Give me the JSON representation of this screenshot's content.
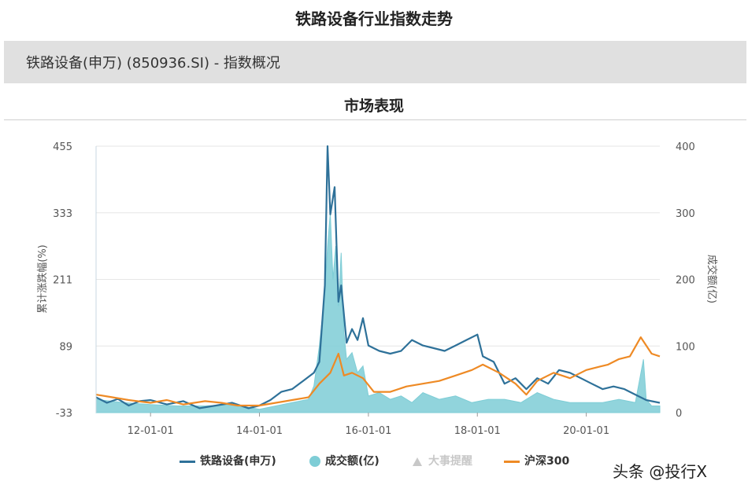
{
  "page": {
    "title": "铁路设备行业指数走势",
    "info_bar": "铁路设备(申万) (850936.SI) - 指数概况",
    "section_title": "市场表现",
    "watermark": "头条 @投行X"
  },
  "colors": {
    "index_line": "#2e7199",
    "volume_fill": "#7ecdd6",
    "hs300_line": "#ee8a25",
    "grid": "#e6e6e6"
  },
  "chart_data": {
    "type": "line",
    "title": "",
    "ylabel_left": "累计涨跌幅(%)",
    "ylabel_right": "成交额(亿)",
    "yticks_left": [
      -33,
      89,
      211,
      333,
      455
    ],
    "ylim_left": [
      -33,
      455
    ],
    "yticks_right": [
      0,
      100,
      200,
      300,
      400
    ],
    "ylim_right": [
      0,
      400
    ],
    "xticks": [
      "12-01-01",
      "14-01-01",
      "16-01-01",
      "18-01-01",
      "20-01-01"
    ],
    "xlim": [
      2011.0,
      2021.35
    ],
    "grid": true,
    "legend_position": "bottom",
    "legend": [
      "铁路设备(申万)",
      "成交额(亿)",
      "大事提醒",
      "沪深300"
    ],
    "series": [
      {
        "name": "铁路设备(申万)",
        "axis": "left",
        "x": [
          2011.0,
          2011.2,
          2011.4,
          2011.6,
          2011.8,
          2012.0,
          2012.3,
          2012.6,
          2012.9,
          2013.2,
          2013.5,
          2013.8,
          2014.0,
          2014.2,
          2014.4,
          2014.6,
          2014.8,
          2015.0,
          2015.1,
          2015.2,
          2015.25,
          2015.3,
          2015.38,
          2015.45,
          2015.5,
          2015.6,
          2015.7,
          2015.8,
          2015.9,
          2016.0,
          2016.2,
          2016.4,
          2016.6,
          2016.8,
          2017.0,
          2017.2,
          2017.4,
          2017.6,
          2017.8,
          2018.0,
          2018.1,
          2018.3,
          2018.5,
          2018.7,
          2018.9,
          2019.1,
          2019.3,
          2019.5,
          2019.7,
          2019.9,
          2020.1,
          2020.3,
          2020.5,
          2020.7,
          2020.9,
          2021.1,
          2021.35
        ],
        "values": [
          -5,
          -15,
          -8,
          -20,
          -12,
          -10,
          -18,
          -12,
          -25,
          -20,
          -15,
          -25,
          -20,
          -10,
          5,
          10,
          25,
          40,
          60,
          200,
          455,
          330,
          380,
          170,
          200,
          95,
          120,
          100,
          140,
          90,
          80,
          75,
          80,
          100,
          90,
          85,
          80,
          90,
          100,
          110,
          70,
          60,
          20,
          30,
          10,
          30,
          20,
          45,
          40,
          30,
          20,
          10,
          15,
          10,
          0,
          -10,
          -15
        ]
      },
      {
        "name": "沪深300",
        "axis": "left",
        "x": [
          2011.0,
          2011.3,
          2011.6,
          2012.0,
          2012.3,
          2012.6,
          2013.0,
          2013.3,
          2013.6,
          2014.0,
          2014.3,
          2014.6,
          2014.9,
          2015.1,
          2015.3,
          2015.45,
          2015.55,
          2015.7,
          2015.9,
          2016.1,
          2016.4,
          2016.7,
          2017.0,
          2017.3,
          2017.6,
          2017.9,
          2018.1,
          2018.4,
          2018.7,
          2018.9,
          2019.1,
          2019.4,
          2019.7,
          2020.0,
          2020.2,
          2020.4,
          2020.6,
          2020.8,
          2021.0,
          2021.2,
          2021.35
        ],
        "values": [
          0,
          -5,
          -10,
          -15,
          -10,
          -18,
          -12,
          -15,
          -20,
          -20,
          -15,
          -10,
          -5,
          20,
          40,
          75,
          35,
          40,
          30,
          5,
          5,
          15,
          20,
          25,
          35,
          45,
          55,
          40,
          20,
          0,
          25,
          40,
          30,
          45,
          50,
          55,
          65,
          70,
          105,
          75,
          70
        ]
      },
      {
        "name": "成交额(亿)",
        "axis": "right",
        "x": [
          2011.0,
          2011.5,
          2012.0,
          2012.5,
          2013.0,
          2013.5,
          2014.0,
          2014.3,
          2014.6,
          2014.9,
          2015.0,
          2015.1,
          2015.2,
          2015.25,
          2015.3,
          2015.35,
          2015.4,
          2015.45,
          2015.5,
          2015.55,
          2015.6,
          2015.7,
          2015.8,
          2015.9,
          2016.0,
          2016.2,
          2016.4,
          2016.6,
          2016.8,
          2017.0,
          2017.3,
          2017.6,
          2017.9,
          2018.2,
          2018.5,
          2018.8,
          2019.1,
          2019.4,
          2019.7,
          2020.0,
          2020.3,
          2020.6,
          2020.9,
          2021.05,
          2021.1,
          2021.2,
          2021.35
        ],
        "values": [
          20,
          15,
          12,
          10,
          10,
          12,
          5,
          10,
          15,
          20,
          40,
          100,
          180,
          250,
          300,
          200,
          250,
          160,
          240,
          120,
          80,
          90,
          60,
          70,
          25,
          30,
          20,
          25,
          15,
          30,
          20,
          25,
          15,
          20,
          20,
          15,
          30,
          20,
          15,
          15,
          15,
          20,
          15,
          80,
          20,
          10,
          10
        ]
      }
    ]
  }
}
